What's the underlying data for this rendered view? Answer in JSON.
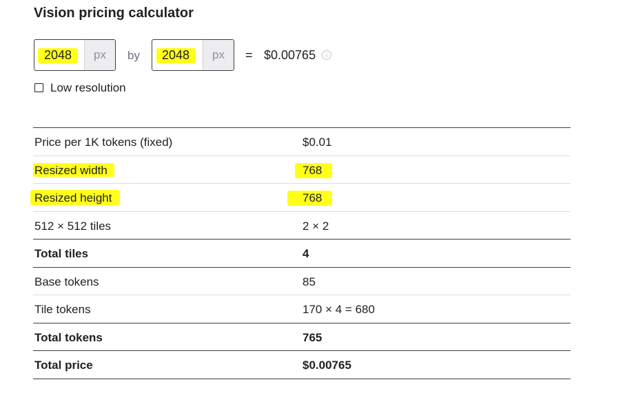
{
  "title": "Vision pricing calculator",
  "inputs": [
    {
      "value": "2048",
      "unit": "px"
    },
    {
      "value": "2048",
      "unit": "px"
    }
  ],
  "by": "by",
  "equals": "=",
  "result": "$0.00765",
  "checkbox": {
    "label": "Low resolution",
    "checked": false
  },
  "table": {
    "rows": [
      {
        "label": "Price per 1K tokens (fixed)",
        "value": "$0.01",
        "bold": false
      },
      {
        "label": "Resized width",
        "value": "768",
        "bold": false
      },
      {
        "label": "Resized height",
        "value": "768",
        "bold": false
      },
      {
        "label": "512 × 512 tiles",
        "value": "2 × 2",
        "bold": false
      },
      {
        "label": "Total tiles",
        "value": "4",
        "bold": true
      },
      {
        "label": "Base tokens",
        "value": "85",
        "bold": false
      },
      {
        "label": "Tile tokens",
        "value": "170 × 4 = 680",
        "bold": false
      },
      {
        "label": "Total tokens",
        "value": "765",
        "bold": true
      },
      {
        "label": "Total price",
        "value": "$0.00765",
        "bold": true
      }
    ]
  }
}
